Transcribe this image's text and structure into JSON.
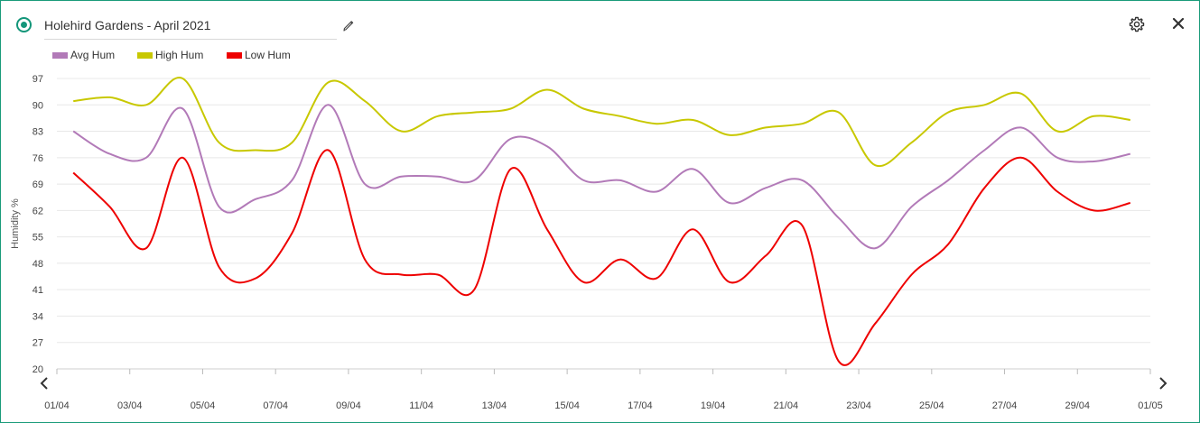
{
  "header": {
    "title": "Holehird Gardens - April 2021"
  },
  "icons": {
    "status": "status-indicator-icon",
    "edit": "pencil-icon",
    "settings": "gear-icon",
    "close": "close-icon",
    "prev": "chevron-left-icon",
    "next": "chevron-right-icon"
  },
  "colors": {
    "accent": "#14967a",
    "avg": "#b27ab8",
    "high": "#c8c800",
    "low": "#ee0000"
  },
  "chart_data": {
    "type": "line",
    "ylabel": "Humidity %",
    "xlabel": "",
    "ylim": [
      20,
      97
    ],
    "yticks": [
      "97",
      "90",
      "83",
      "76",
      "69",
      "62",
      "55",
      "48",
      "41",
      "34",
      "27",
      "20"
    ],
    "xticks": [
      "01/04",
      "03/04",
      "05/04",
      "07/04",
      "09/04",
      "11/04",
      "13/04",
      "15/04",
      "17/04",
      "19/04",
      "21/04",
      "23/04",
      "25/04",
      "27/04",
      "29/04",
      "01/05"
    ],
    "grid": true,
    "legend_position": "top-left",
    "x": [
      "01/04",
      "02/04",
      "03/04",
      "04/04",
      "05/04",
      "06/04",
      "07/04",
      "08/04",
      "09/04",
      "10/04",
      "11/04",
      "12/04",
      "13/04",
      "14/04",
      "15/04",
      "16/04",
      "17/04",
      "18/04",
      "19/04",
      "20/04",
      "21/04",
      "22/04",
      "23/04",
      "24/04",
      "25/04",
      "26/04",
      "27/04",
      "28/04",
      "29/04",
      "30/04"
    ],
    "series": [
      {
        "name": "Avg Hum",
        "color": "#b27ab8",
        "values": [
          83,
          77,
          76,
          89,
          63,
          65,
          70,
          90,
          69,
          71,
          71,
          70,
          81,
          79,
          70,
          70,
          67,
          73,
          64,
          68,
          70,
          60,
          52,
          63,
          70,
          78,
          84,
          76,
          75,
          77
        ]
      },
      {
        "name": "High Hum",
        "color": "#c8c800",
        "values": [
          91,
          92,
          90,
          97,
          80,
          78,
          80,
          96,
          91,
          83,
          87,
          88,
          89,
          94,
          89,
          87,
          85,
          86,
          82,
          84,
          85,
          88,
          74,
          80,
          88,
          90,
          93,
          83,
          87,
          86
        ]
      },
      {
        "name": "Low Hum",
        "color": "#ee0000",
        "values": [
          72,
          63,
          52,
          76,
          47,
          44,
          56,
          78,
          49,
          45,
          45,
          41,
          73,
          57,
          43,
          49,
          44,
          57,
          43,
          50,
          58,
          22,
          32,
          45,
          53,
          68,
          76,
          67,
          62,
          64
        ]
      }
    ]
  }
}
